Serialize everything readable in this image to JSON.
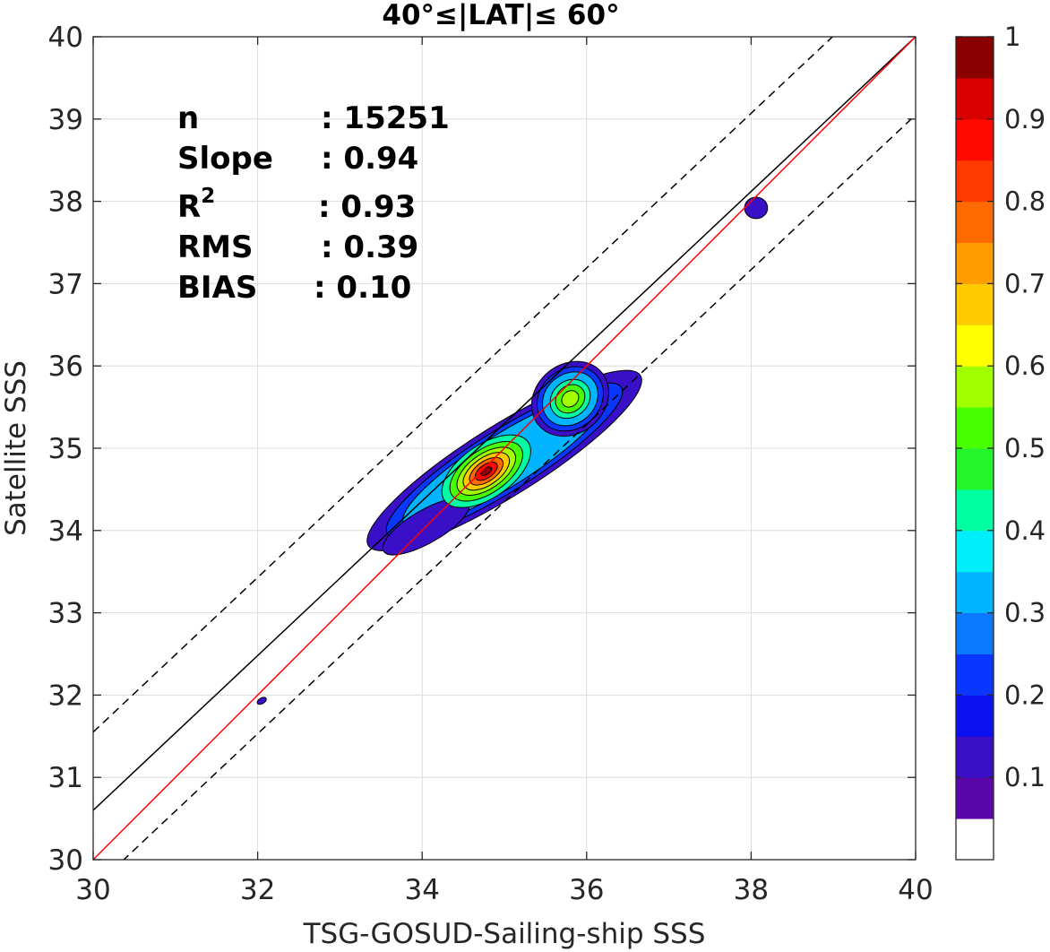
{
  "chart_data": {
    "type": "heatmap",
    "title": "40°≤|LAT|≤ 60°",
    "xlabel": "TSG-GOSUD-Sailing-ship SSS",
    "ylabel": "Satellite SSS",
    "xlim": [
      30,
      40
    ],
    "ylim": [
      30,
      40
    ],
    "xticks": [
      "30",
      "32",
      "34",
      "36",
      "38",
      "40"
    ],
    "yticks": [
      "30",
      "31",
      "32",
      "33",
      "34",
      "35",
      "36",
      "37",
      "38",
      "39",
      "40"
    ],
    "grid": true,
    "stats": {
      "n_label": "n",
      "n_value": ": 15251",
      "slope_label": "Slope",
      "slope_value": ": 0.94",
      "r2_label": "R",
      "r2_sup": "2",
      "r2_value": ": 0.93",
      "rms_label": "RMS",
      "rms_value": ": 0.39",
      "bias_label": "BIAS",
      "bias_value": ": 0.10"
    },
    "lines": {
      "one_to_one": {
        "color": "#ff0000",
        "slope": 1.0,
        "intercept": 0.0
      },
      "regression": {
        "color": "#000000",
        "slope": 0.94,
        "intercept": 2.4
      },
      "upper_bound": {
        "color": "#000000",
        "style": "dashed",
        "slope": 0.94,
        "intercept": 3.35
      },
      "lower_bound": {
        "color": "#000000",
        "style": "dashed",
        "slope": 0.94,
        "intercept": 1.45
      }
    },
    "density_levels": [
      0.1,
      0.2,
      0.3,
      0.4,
      0.5,
      0.6,
      0.7,
      0.8,
      0.9
    ],
    "density_peaks": [
      {
        "x": 34.75,
        "y": 34.7,
        "value": 1.0
      },
      {
        "x": 35.8,
        "y": 35.65,
        "value": 0.55
      },
      {
        "x": 38.05,
        "y": 37.9,
        "value": 0.12
      },
      {
        "x": 32.05,
        "y": 31.93,
        "value": 0.08
      }
    ],
    "colorbar": {
      "ticks": [
        "0.1",
        "0.2",
        "0.3",
        "0.4",
        "0.5",
        "0.6",
        "0.7",
        "0.8",
        "0.9",
        "1"
      ],
      "colors": [
        "#ffffff",
        "#5a06a8",
        "#3a0fc8",
        "#0a10ee",
        "#0a37ff",
        "#0a78ff",
        "#00b4ff",
        "#00eefa",
        "#00ffa3",
        "#22f52a",
        "#47ff00",
        "#a2ff00",
        "#ffff00",
        "#ffcb00",
        "#ff9d00",
        "#ff6a00",
        "#ff3a00",
        "#ff0800",
        "#d80000",
        "#8a0000"
      ]
    }
  }
}
